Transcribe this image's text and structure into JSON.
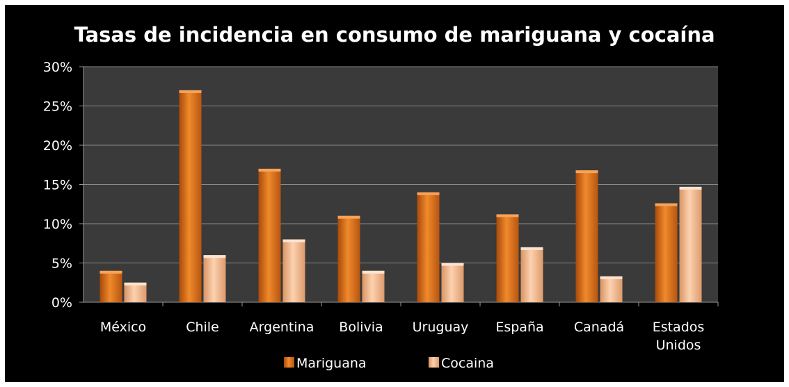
{
  "chart_data": {
    "type": "bar",
    "title": "Tasas de incidencia en consumo de mariguana y cocaína",
    "xlabel": "",
    "ylabel": "",
    "categories": [
      [
        "México"
      ],
      [
        "Chile"
      ],
      [
        "Argentina"
      ],
      [
        "Bolivia"
      ],
      [
        "Uruguay"
      ],
      [
        "España"
      ],
      [
        "Canadá"
      ],
      [
        "Estados",
        "Unidos"
      ]
    ],
    "series": [
      {
        "name": "Mariguana",
        "color": "#e8731c",
        "values": [
          4,
          27,
          17,
          11,
          14,
          11.2,
          16.8,
          12.6
        ]
      },
      {
        "name": "Cocaina",
        "color": "#f7b98c",
        "values": [
          2.5,
          6,
          8,
          4,
          5,
          7,
          3.3,
          14.7
        ]
      }
    ],
    "ylim": [
      0,
      30
    ],
    "yticks": [
      "0%",
      "5%",
      "10%",
      "15%",
      "20%",
      "25%",
      "30%"
    ],
    "ytick_values": [
      0,
      5,
      10,
      15,
      20,
      25,
      30
    ],
    "grid": true,
    "legend_position": "bottom",
    "plot_background": "#3a3a3a",
    "page_background": "#000000"
  }
}
